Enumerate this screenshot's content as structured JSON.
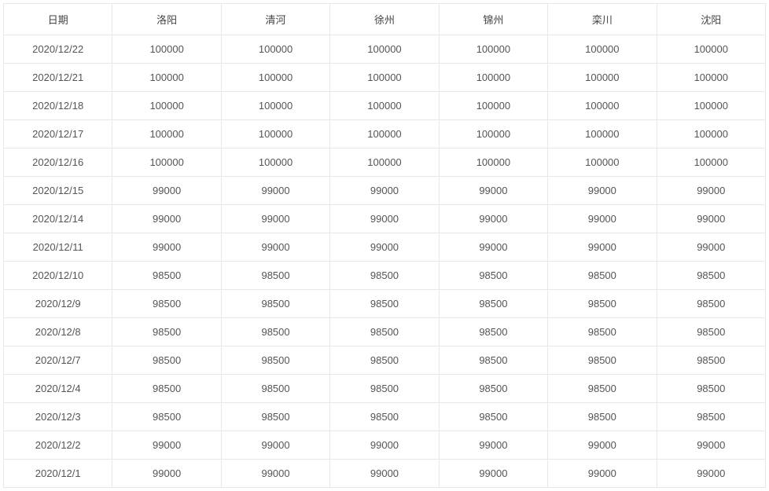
{
  "table": {
    "type": "table",
    "border_color": "#e8e8e8",
    "background_color": "#ffffff",
    "text_color": "#555555",
    "header_text_color": "#444444",
    "font_size": 13,
    "cell_padding": 10,
    "columns": [
      "日期",
      "洛阳",
      "清河",
      "徐州",
      "锦州",
      "栾川",
      "沈阳"
    ],
    "rows": [
      [
        "2020/12/22",
        "100000",
        "100000",
        "100000",
        "100000",
        "100000",
        "100000"
      ],
      [
        "2020/12/21",
        "100000",
        "100000",
        "100000",
        "100000",
        "100000",
        "100000"
      ],
      [
        "2020/12/18",
        "100000",
        "100000",
        "100000",
        "100000",
        "100000",
        "100000"
      ],
      [
        "2020/12/17",
        "100000",
        "100000",
        "100000",
        "100000",
        "100000",
        "100000"
      ],
      [
        "2020/12/16",
        "100000",
        "100000",
        "100000",
        "100000",
        "100000",
        "100000"
      ],
      [
        "2020/12/15",
        "99000",
        "99000",
        "99000",
        "99000",
        "99000",
        "99000"
      ],
      [
        "2020/12/14",
        "99000",
        "99000",
        "99000",
        "99000",
        "99000",
        "99000"
      ],
      [
        "2020/12/11",
        "99000",
        "99000",
        "99000",
        "99000",
        "99000",
        "99000"
      ],
      [
        "2020/12/10",
        "98500",
        "98500",
        "98500",
        "98500",
        "98500",
        "98500"
      ],
      [
        "2020/12/9",
        "98500",
        "98500",
        "98500",
        "98500",
        "98500",
        "98500"
      ],
      [
        "2020/12/8",
        "98500",
        "98500",
        "98500",
        "98500",
        "98500",
        "98500"
      ],
      [
        "2020/12/7",
        "98500",
        "98500",
        "98500",
        "98500",
        "98500",
        "98500"
      ],
      [
        "2020/12/4",
        "98500",
        "98500",
        "98500",
        "98500",
        "98500",
        "98500"
      ],
      [
        "2020/12/3",
        "98500",
        "98500",
        "98500",
        "98500",
        "98500",
        "98500"
      ],
      [
        "2020/12/2",
        "99000",
        "99000",
        "99000",
        "99000",
        "99000",
        "99000"
      ],
      [
        "2020/12/1",
        "99000",
        "99000",
        "99000",
        "99000",
        "99000",
        "99000"
      ]
    ]
  }
}
